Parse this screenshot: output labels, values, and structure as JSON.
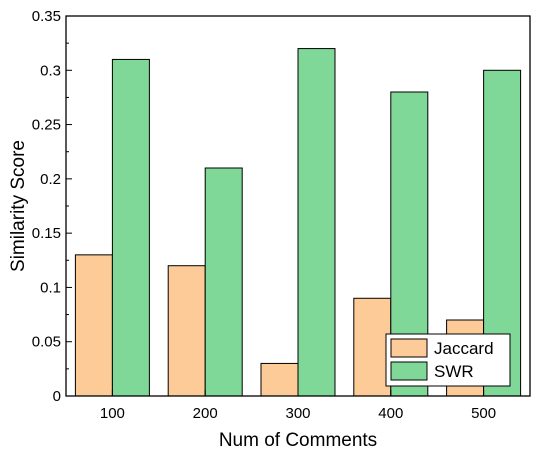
{
  "chart_data": {
    "type": "bar",
    "title": "",
    "xlabel": "Num of Comments",
    "ylabel": "Similarity Score",
    "categories": [
      "100",
      "200",
      "300",
      "400",
      "500"
    ],
    "series": [
      {
        "name": "Jaccard",
        "values": [
          0.13,
          0.12,
          0.03,
          0.09,
          0.07
        ],
        "color": "#fdcb98"
      },
      {
        "name": "SWR",
        "values": [
          0.31,
          0.21,
          0.32,
          0.28,
          0.3
        ],
        "color": "#7fd798"
      }
    ],
    "ylim": [
      0,
      0.35
    ],
    "yticks": [
      "0",
      "0.05",
      "0.1",
      "0.15",
      "0.2",
      "0.25",
      "0.3",
      "0.35"
    ],
    "grid": false,
    "legend_position": "bottom-right"
  }
}
